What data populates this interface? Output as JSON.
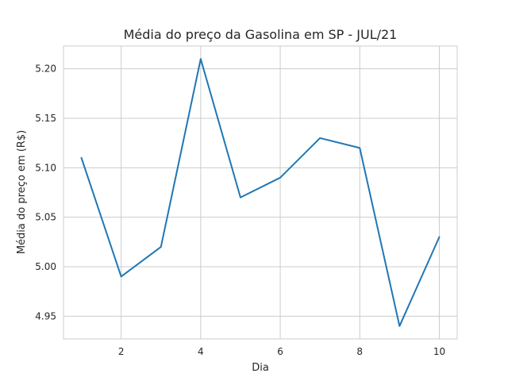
{
  "chart_data": {
    "type": "line",
    "title": "Média do preço da Gasolina em SP - JUL/21",
    "xlabel": "Dia",
    "ylabel": "Média do preço em (R$)",
    "x": [
      1,
      2,
      3,
      4,
      5,
      6,
      7,
      8,
      9,
      10
    ],
    "series": [
      {
        "values": [
          5.11,
          4.99,
          5.02,
          5.21,
          5.07,
          5.09,
          5.13,
          5.12,
          4.94,
          5.03
        ]
      }
    ],
    "xlim": [
      0.55,
      10.45
    ],
    "ylim": [
      4.927,
      5.223
    ],
    "xticks": [
      2,
      4,
      6,
      8,
      10
    ],
    "xtick_labels": [
      "2",
      "4",
      "6",
      "8",
      "10"
    ],
    "yticks": [
      4.95,
      5.0,
      5.05,
      5.1,
      5.15,
      5.2
    ],
    "ytick_labels": [
      "4.95",
      "5.00",
      "5.05",
      "5.10",
      "5.15",
      "5.20"
    ],
    "grid": true,
    "line_color": "#1f77b4"
  }
}
